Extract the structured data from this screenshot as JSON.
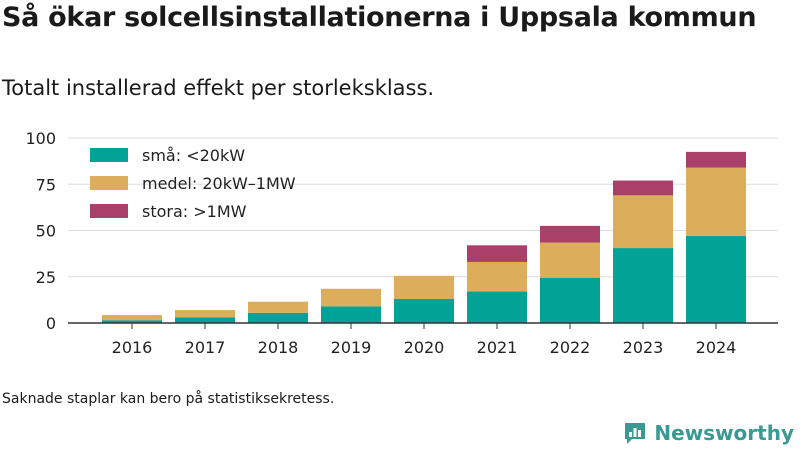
{
  "title": "Så ökar solcellsinstallationerna i Uppsala kommun",
  "subtitle": "Totalt installerad effekt per storleksklass.",
  "footnote": "Saknade staplar kan bero på statistiksekretess.",
  "brand": {
    "name": "Newsworthy",
    "icon": "bar-chart-logo-icon",
    "color": "#3a9a92"
  },
  "chart_data": {
    "type": "bar",
    "stacked": true,
    "categories": [
      "2016",
      "2017",
      "2018",
      "2019",
      "2020",
      "2021",
      "2022",
      "2023",
      "2024"
    ],
    "series": [
      {
        "name": "små: <20kW",
        "color": "#00a396",
        "values": [
          1.5,
          3,
          5.5,
          9,
          13,
          17,
          24.5,
          40.5,
          47
        ]
      },
      {
        "name": "medel: 20kW–1MW",
        "color": "#dcad5b",
        "values": [
          2.8,
          4,
          6,
          9.5,
          12.5,
          16,
          19,
          28.5,
          37
        ]
      },
      {
        "name": "stora: >1MW",
        "color": "#a8406a",
        "values": [
          0,
          0,
          0,
          0,
          0,
          9,
          9,
          8,
          8.5
        ]
      }
    ],
    "ylim": [
      0,
      100
    ],
    "yticks": [
      0,
      25,
      50,
      75,
      100
    ],
    "grid": true,
    "legend": "top-left",
    "xlabel": "",
    "ylabel": ""
  }
}
